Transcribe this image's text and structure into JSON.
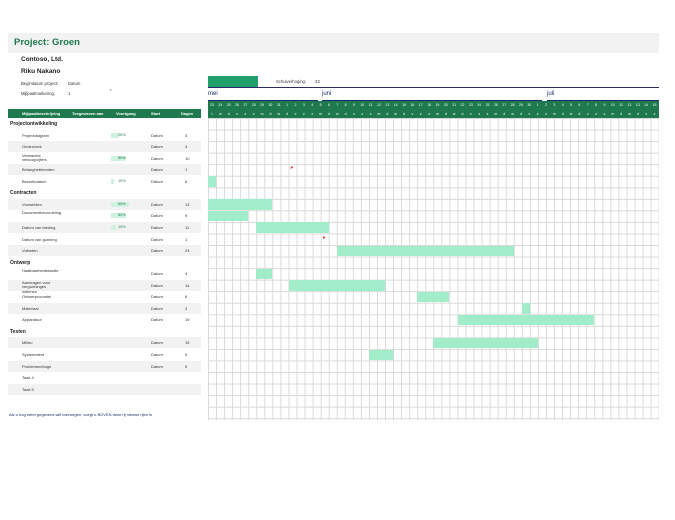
{
  "project": {
    "title": "Project: Groen",
    "company": "Contoso, Ltd.",
    "manager": "Riku Nakano",
    "start_label": "Begindatum project:",
    "start_value": "Datum",
    "milestone_label": "Mijlpaalmarkering:",
    "milestone_value": "1",
    "milestone_hint": "*",
    "scroll_label": "Schuiverhoging:",
    "scroll_value": "33"
  },
  "columns": {
    "desc": "Mijlpaalbeschrijving",
    "assigned": "Toegewezen aan",
    "progress": "Voortgang",
    "start": "Start",
    "days": "Dagen"
  },
  "months": [
    "mei",
    "juni",
    "juli"
  ],
  "days": [
    "23",
    "24",
    "25",
    "26",
    "27",
    "28",
    "29",
    "30",
    "31",
    "1",
    "2",
    "3",
    "4",
    "5",
    "6",
    "7",
    "8",
    "9",
    "10",
    "11",
    "12",
    "13",
    "14",
    "15",
    "16",
    "17",
    "18",
    "19",
    "20",
    "21",
    "22",
    "23",
    "24",
    "25",
    "26",
    "27",
    "28",
    "29",
    "30",
    "1",
    "2",
    "3",
    "4",
    "5",
    "6",
    "7",
    "8",
    "9",
    "10",
    "11",
    "12",
    "13",
    "14",
    "15"
  ],
  "weekdays": [
    "t",
    "w",
    "d",
    "v",
    "z",
    "z",
    "m",
    "d",
    "w",
    "d",
    "v",
    "z",
    "z",
    "m",
    "d",
    "w",
    "d",
    "v",
    "z",
    "z",
    "m",
    "d",
    "w",
    "d",
    "v",
    "z",
    "z",
    "m",
    "d",
    "w",
    "d",
    "v",
    "z",
    "z",
    "m",
    "d",
    "w",
    "d",
    "v",
    "z",
    "z",
    "m",
    "d",
    "w",
    "d",
    "v",
    "z",
    "z",
    "m",
    "d",
    "w",
    "d",
    "v",
    "z"
  ],
  "rows": [
    {
      "type": "phase",
      "label": "Projectontwikkeling"
    },
    {
      "type": "task",
      "desc": "Projectdiagram",
      "progress": "25%",
      "start": "Datum",
      "days": "3"
    },
    {
      "type": "task",
      "desc": "Onderzoek",
      "progress": "",
      "start": "Datum",
      "days": "3"
    },
    {
      "type": "task",
      "desc": "Verwachte verkoopcijfers",
      "progress": "50%",
      "start": "Datum",
      "days": "10"
    },
    {
      "type": "task",
      "desc": "Belanghebbenden",
      "progress": "",
      "start": "Datum",
      "days": "1"
    },
    {
      "type": "task",
      "desc": "Bezoekdatum",
      "progress": "10%",
      "start": "Datum",
      "days": "6"
    },
    {
      "type": "phase",
      "label": "Contracten"
    },
    {
      "type": "task",
      "desc": "Voorstellen",
      "progress": "60%",
      "start": "Datum",
      "days": "13"
    },
    {
      "type": "task",
      "desc": "Documentbeoordeling",
      "progress": "50%",
      "start": "Datum",
      "days": "9"
    },
    {
      "type": "task",
      "desc": "Datum van bieding",
      "progress": "15%",
      "start": "Datum",
      "days": "11"
    },
    {
      "type": "task",
      "desc": "Datum van gunning",
      "progress": "",
      "start": "Datum",
      "days": "1"
    },
    {
      "type": "task",
      "desc": "Volbeten",
      "progress": "",
      "start": "Datum",
      "days": "24"
    },
    {
      "type": "phase",
      "label": "Ontwerp"
    },
    {
      "type": "task",
      "desc": "Haalbaarheidsstudie",
      "progress": "",
      "start": "Datum",
      "days": "4"
    },
    {
      "type": "task",
      "desc": "Aanvragen voor vergunningen indienen",
      "progress": "",
      "start": "Datum",
      "days": "14"
    },
    {
      "type": "task",
      "desc": "Ontwerpvoorstel",
      "progress": "",
      "start": "Datum",
      "days": "6"
    },
    {
      "type": "task",
      "desc": "Materiaal",
      "progress": "",
      "start": "Datum",
      "days": "3"
    },
    {
      "type": "task",
      "desc": "Apparatuur",
      "progress": "",
      "start": "Datum",
      "days": "19"
    },
    {
      "type": "phase",
      "label": "Testen"
    },
    {
      "type": "task",
      "desc": "Milieu",
      "progress": "",
      "start": "Datum",
      "days": "15"
    },
    {
      "type": "task",
      "desc": "Systeemtest",
      "progress": "",
      "start": "Datum",
      "days": "5"
    },
    {
      "type": "task",
      "desc": "Problemen/bugs",
      "progress": "",
      "start": "Datum",
      "days": "5"
    },
    {
      "type": "task",
      "desc": "Taak 4",
      "progress": "",
      "start": "",
      "days": ""
    },
    {
      "type": "task",
      "desc": "Taak 5",
      "progress": "",
      "start": "",
      "days": ""
    }
  ],
  "bars": [
    {
      "row": 5,
      "start": 0,
      "len": 1
    },
    {
      "row": 7,
      "start": 0,
      "len": 8
    },
    {
      "row": 8,
      "start": 0,
      "len": 5
    },
    {
      "row": 9,
      "start": 6,
      "len": 9
    },
    {
      "row": 11,
      "start": 16,
      "len": 22
    },
    {
      "row": 13,
      "start": 6,
      "len": 2
    },
    {
      "row": 14,
      "start": 10,
      "len": 12
    },
    {
      "row": 15,
      "start": 26,
      "len": 4
    },
    {
      "row": 16,
      "start": 39,
      "len": 1
    },
    {
      "row": 17,
      "start": 31,
      "len": 17
    },
    {
      "row": 19,
      "start": 28,
      "len": 13
    },
    {
      "row": 20,
      "start": 20,
      "len": 3
    }
  ],
  "milestones": [
    {
      "row": 4,
      "col": 10,
      "label": "P"
    },
    {
      "row": 10,
      "col": 14,
      "label": "P"
    }
  ],
  "footer": "Als u nog meer gegevens wilt toevoegen, voegt u BOVEN deze rij nieuwe rijen in"
}
